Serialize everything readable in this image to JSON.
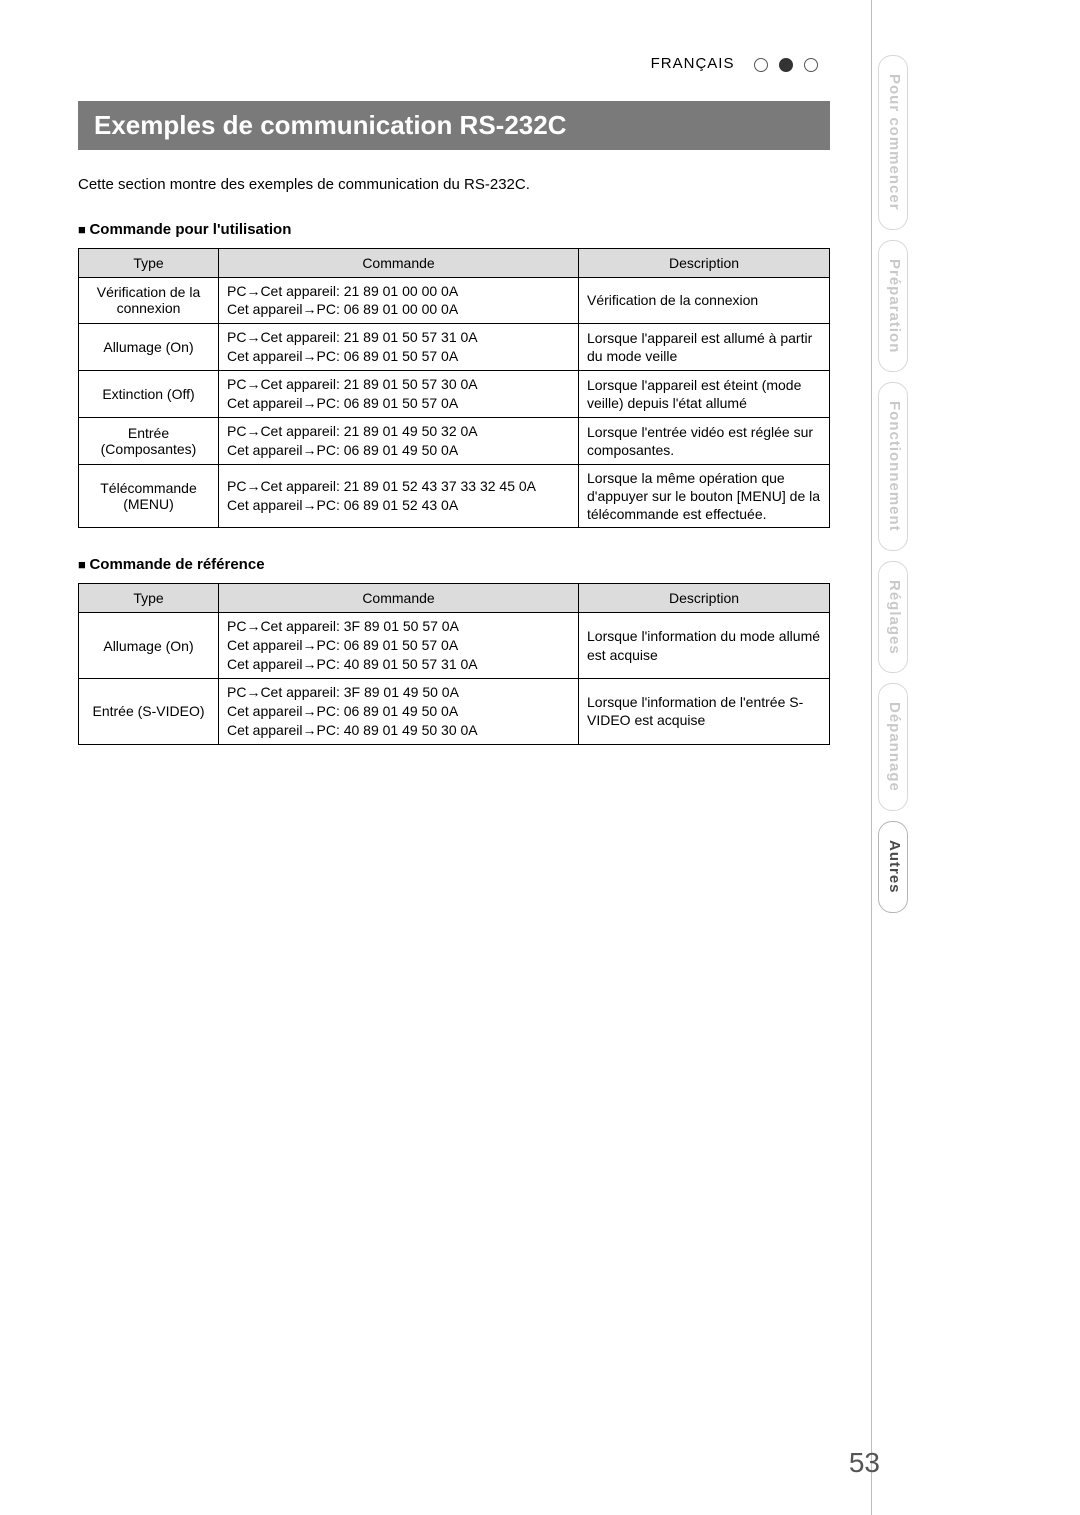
{
  "header": {
    "language": "FRANÇAIS",
    "dot_states": [
      "empty",
      "filled",
      "empty"
    ]
  },
  "title": "Exemples de communication RS-232C",
  "intro": "Cette section montre des exemples de communication du RS-232C.",
  "section1": {
    "heading": "Commande pour l'utilisation",
    "columns": [
      "Type",
      "Commande",
      "Description"
    ],
    "rows": [
      {
        "type": "Vérification de la connexion",
        "cmd1": "PC→Cet appareil: 21 89 01 00 00 0A",
        "cmd2": "Cet appareil→PC: 06 89 01 00 00 0A",
        "desc": "Vérification de la connexion"
      },
      {
        "type": "Allumage (On)",
        "cmd1": "PC→Cet appareil: 21 89 01 50 57 31 0A",
        "cmd2": "Cet appareil→PC: 06 89 01 50 57 0A",
        "desc": "Lorsque l'appareil est allumé à partir du mode veille"
      },
      {
        "type": "Extinction (Off)",
        "cmd1": "PC→Cet appareil: 21 89 01 50 57 30 0A",
        "cmd2": "Cet appareil→PC: 06 89 01 50 57 0A",
        "desc": "Lorsque l'appareil est éteint (mode veille) depuis l'état allumé"
      },
      {
        "type": "Entrée (Composantes)",
        "cmd1": "PC→Cet appareil: 21 89 01 49 50 32 0A",
        "cmd2": "Cet appareil→PC: 06 89 01 49 50 0A",
        "desc": "Lorsque l'entrée vidéo est réglée sur composantes."
      },
      {
        "type": "Télécommande (MENU)",
        "cmd1": "PC→Cet appareil: 21 89 01 52 43 37 33 32 45 0A",
        "cmd2": "Cet appareil→PC: 06 89 01 52 43 0A",
        "desc": "Lorsque la même opération que d'appuyer sur le bouton [MENU] de la télécommande est effectuée."
      }
    ]
  },
  "section2": {
    "heading": "Commande de référence",
    "columns": [
      "Type",
      "Commande",
      "Description"
    ],
    "rows": [
      {
        "type": "Allumage (On)",
        "cmd1": "PC→Cet appareil: 3F 89 01 50 57 0A",
        "cmd2": "Cet appareil→PC: 06 89 01 50 57 0A",
        "cmd3": "Cet appareil→PC: 40 89 01 50 57 31 0A",
        "desc": "Lorsque l'information du mode allumé est acquise"
      },
      {
        "type": "Entrée (S-VIDEO)",
        "cmd1": "PC→Cet appareil: 3F 89 01 49 50 0A",
        "cmd2": "Cet appareil→PC: 06 89 01 49 50 0A",
        "cmd3": "Cet appareil→PC: 40 89 01 49 50 30 0A",
        "desc": "Lorsque l'information de l'entrée S-VIDEO est acquise"
      }
    ]
  },
  "side_tabs": [
    {
      "label": "Pour commencer",
      "active": false
    },
    {
      "label": "Préparation",
      "active": false
    },
    {
      "label": "Fonctionnement",
      "active": false
    },
    {
      "label": "Réglages",
      "active": false
    },
    {
      "label": "Dépannage",
      "active": false
    },
    {
      "label": "Autres",
      "active": true
    }
  ],
  "page_number": "53",
  "colors": {
    "title_bg": "#7a7a7a",
    "title_fg": "#ffffff",
    "table_header_bg": "#dcdcdc",
    "tab_inactive": "#c9c9c9",
    "tab_active": "#4a4a4a",
    "border": "#000000",
    "page_num": "#555555"
  }
}
